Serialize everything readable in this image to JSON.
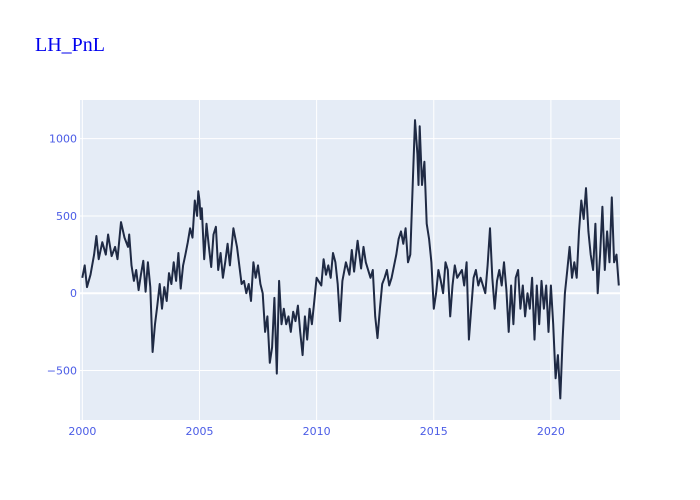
{
  "chart_data": {
    "type": "line",
    "title": "LH_PnL",
    "xlabel": "",
    "ylabel": "",
    "xlim": [
      1999.9,
      2022.95
    ],
    "ylim": [
      -820,
      1250
    ],
    "grid": true,
    "legend": "none",
    "x_ticks": [
      {
        "value": 2000,
        "label": "2000"
      },
      {
        "value": 2005,
        "label": "2005"
      },
      {
        "value": 2010,
        "label": "2010"
      },
      {
        "value": 2015,
        "label": "2015"
      },
      {
        "value": 2020,
        "label": "2020"
      }
    ],
    "y_ticks": [
      {
        "value": 1000,
        "label": "1000"
      },
      {
        "value": 500,
        "label": "500"
      },
      {
        "value": 0,
        "label": "0"
      },
      {
        "value": -500,
        "label": "−500"
      }
    ],
    "colors": {
      "plot_bg": "#e5ecf6",
      "line": "#1f2a44",
      "ticks": "#4b5ce6",
      "title": "#0000ee"
    },
    "series": [
      {
        "values": [
          [
            2000.0,
            100
          ],
          [
            2000.1,
            180
          ],
          [
            2000.2,
            40
          ],
          [
            2000.35,
            120
          ],
          [
            2000.5,
            250
          ],
          [
            2000.6,
            370
          ],
          [
            2000.7,
            220
          ],
          [
            2000.85,
            330
          ],
          [
            2001.0,
            250
          ],
          [
            2001.1,
            380
          ],
          [
            2001.25,
            240
          ],
          [
            2001.4,
            300
          ],
          [
            2001.5,
            220
          ],
          [
            2001.65,
            460
          ],
          [
            2001.8,
            360
          ],
          [
            2001.95,
            300
          ],
          [
            2002.0,
            380
          ],
          [
            2002.1,
            180
          ],
          [
            2002.2,
            80
          ],
          [
            2002.3,
            150
          ],
          [
            2002.4,
            20
          ],
          [
            2002.5,
            120
          ],
          [
            2002.6,
            210
          ],
          [
            2002.7,
            10
          ],
          [
            2002.8,
            200
          ],
          [
            2002.9,
            40
          ],
          [
            2003.0,
            -380
          ],
          [
            2003.1,
            -200
          ],
          [
            2003.2,
            -80
          ],
          [
            2003.3,
            60
          ],
          [
            2003.4,
            -100
          ],
          [
            2003.5,
            40
          ],
          [
            2003.6,
            -50
          ],
          [
            2003.7,
            130
          ],
          [
            2003.8,
            60
          ],
          [
            2003.9,
            200
          ],
          [
            2004.0,
            80
          ],
          [
            2004.1,
            260
          ],
          [
            2004.2,
            30
          ],
          [
            2004.3,
            180
          ],
          [
            2004.4,
            250
          ],
          [
            2004.5,
            330
          ],
          [
            2004.6,
            420
          ],
          [
            2004.7,
            360
          ],
          [
            2004.8,
            600
          ],
          [
            2004.9,
            500
          ],
          [
            2004.95,
            660
          ],
          [
            2005.0,
            600
          ],
          [
            2005.05,
            480
          ],
          [
            2005.1,
            550
          ],
          [
            2005.2,
            220
          ],
          [
            2005.3,
            450
          ],
          [
            2005.4,
            300
          ],
          [
            2005.5,
            170
          ],
          [
            2005.6,
            380
          ],
          [
            2005.7,
            430
          ],
          [
            2005.8,
            150
          ],
          [
            2005.9,
            260
          ],
          [
            2006.0,
            100
          ],
          [
            2006.1,
            200
          ],
          [
            2006.2,
            320
          ],
          [
            2006.3,
            180
          ],
          [
            2006.45,
            420
          ],
          [
            2006.6,
            300
          ],
          [
            2006.8,
            60
          ],
          [
            2006.9,
            80
          ],
          [
            2007.0,
            0
          ],
          [
            2007.1,
            60
          ],
          [
            2007.2,
            -50
          ],
          [
            2007.3,
            200
          ],
          [
            2007.4,
            100
          ],
          [
            2007.5,
            180
          ],
          [
            2007.6,
            60
          ],
          [
            2007.7,
            0
          ],
          [
            2007.8,
            -250
          ],
          [
            2007.9,
            -150
          ],
          [
            2008.0,
            -450
          ],
          [
            2008.1,
            -350
          ],
          [
            2008.2,
            -30
          ],
          [
            2008.3,
            -520
          ],
          [
            2008.4,
            80
          ],
          [
            2008.5,
            -200
          ],
          [
            2008.6,
            -100
          ],
          [
            2008.7,
            -200
          ],
          [
            2008.8,
            -150
          ],
          [
            2008.9,
            -250
          ],
          [
            2009.0,
            -120
          ],
          [
            2009.1,
            -180
          ],
          [
            2009.2,
            -80
          ],
          [
            2009.3,
            -250
          ],
          [
            2009.4,
            -400
          ],
          [
            2009.5,
            -150
          ],
          [
            2009.6,
            -300
          ],
          [
            2009.7,
            -100
          ],
          [
            2009.8,
            -200
          ],
          [
            2009.9,
            -50
          ],
          [
            2010.0,
            100
          ],
          [
            2010.2,
            50
          ],
          [
            2010.3,
            220
          ],
          [
            2010.4,
            120
          ],
          [
            2010.5,
            180
          ],
          [
            2010.6,
            100
          ],
          [
            2010.7,
            260
          ],
          [
            2010.8,
            200
          ],
          [
            2010.9,
            60
          ],
          [
            2011.0,
            -180
          ],
          [
            2011.1,
            80
          ],
          [
            2011.25,
            200
          ],
          [
            2011.4,
            120
          ],
          [
            2011.5,
            280
          ],
          [
            2011.6,
            140
          ],
          [
            2011.75,
            340
          ],
          [
            2011.9,
            160
          ],
          [
            2012.0,
            300
          ],
          [
            2012.1,
            200
          ],
          [
            2012.3,
            100
          ],
          [
            2012.4,
            150
          ],
          [
            2012.5,
            -150
          ],
          [
            2012.6,
            -290
          ],
          [
            2012.7,
            -100
          ],
          [
            2012.8,
            60
          ],
          [
            2012.9,
            100
          ],
          [
            2013.0,
            150
          ],
          [
            2013.1,
            50
          ],
          [
            2013.2,
            100
          ],
          [
            2013.4,
            250
          ],
          [
            2013.5,
            350
          ],
          [
            2013.6,
            400
          ],
          [
            2013.7,
            320
          ],
          [
            2013.8,
            420
          ],
          [
            2013.9,
            200
          ],
          [
            2014.0,
            250
          ],
          [
            2014.1,
            700
          ],
          [
            2014.2,
            1120
          ],
          [
            2014.3,
            900
          ],
          [
            2014.35,
            700
          ],
          [
            2014.4,
            1080
          ],
          [
            2014.5,
            700
          ],
          [
            2014.6,
            850
          ],
          [
            2014.7,
            450
          ],
          [
            2014.8,
            350
          ],
          [
            2014.9,
            200
          ],
          [
            2015.0,
            -100
          ],
          [
            2015.1,
            0
          ],
          [
            2015.2,
            150
          ],
          [
            2015.3,
            80
          ],
          [
            2015.4,
            0
          ],
          [
            2015.5,
            200
          ],
          [
            2015.6,
            150
          ],
          [
            2015.7,
            -150
          ],
          [
            2015.8,
            50
          ],
          [
            2015.9,
            180
          ],
          [
            2016.0,
            100
          ],
          [
            2016.2,
            150
          ],
          [
            2016.3,
            50
          ],
          [
            2016.4,
            200
          ],
          [
            2016.5,
            -300
          ],
          [
            2016.6,
            -100
          ],
          [
            2016.7,
            100
          ],
          [
            2016.8,
            150
          ],
          [
            2016.9,
            50
          ],
          [
            2017.0,
            100
          ],
          [
            2017.2,
            0
          ],
          [
            2017.3,
            180
          ],
          [
            2017.4,
            420
          ],
          [
            2017.5,
            100
          ],
          [
            2017.6,
            -100
          ],
          [
            2017.7,
            80
          ],
          [
            2017.8,
            150
          ],
          [
            2017.9,
            50
          ],
          [
            2018.0,
            200
          ],
          [
            2018.1,
            20
          ],
          [
            2018.2,
            -250
          ],
          [
            2018.3,
            50
          ],
          [
            2018.4,
            -200
          ],
          [
            2018.5,
            100
          ],
          [
            2018.6,
            150
          ],
          [
            2018.7,
            -100
          ],
          [
            2018.8,
            50
          ],
          [
            2018.9,
            -150
          ],
          [
            2019.0,
            0
          ],
          [
            2019.1,
            -100
          ],
          [
            2019.2,
            100
          ],
          [
            2019.3,
            -300
          ],
          [
            2019.4,
            50
          ],
          [
            2019.5,
            -200
          ],
          [
            2019.6,
            80
          ],
          [
            2019.7,
            -100
          ],
          [
            2019.8,
            50
          ],
          [
            2019.9,
            -250
          ],
          [
            2020.0,
            50
          ],
          [
            2020.1,
            -200
          ],
          [
            2020.2,
            -550
          ],
          [
            2020.3,
            -400
          ],
          [
            2020.4,
            -680
          ],
          [
            2020.5,
            -300
          ],
          [
            2020.6,
            0
          ],
          [
            2020.7,
            150
          ],
          [
            2020.8,
            300
          ],
          [
            2020.9,
            100
          ],
          [
            2021.0,
            200
          ],
          [
            2021.1,
            100
          ],
          [
            2021.2,
            400
          ],
          [
            2021.3,
            600
          ],
          [
            2021.4,
            480
          ],
          [
            2021.5,
            680
          ],
          [
            2021.6,
            400
          ],
          [
            2021.7,
            250
          ],
          [
            2021.8,
            150
          ],
          [
            2021.9,
            450
          ],
          [
            2022.0,
            0
          ],
          [
            2022.1,
            250
          ],
          [
            2022.2,
            560
          ],
          [
            2022.3,
            150
          ],
          [
            2022.4,
            400
          ],
          [
            2022.5,
            200
          ],
          [
            2022.6,
            620
          ],
          [
            2022.7,
            200
          ],
          [
            2022.8,
            250
          ],
          [
            2022.9,
            50
          ]
        ]
      }
    ]
  }
}
